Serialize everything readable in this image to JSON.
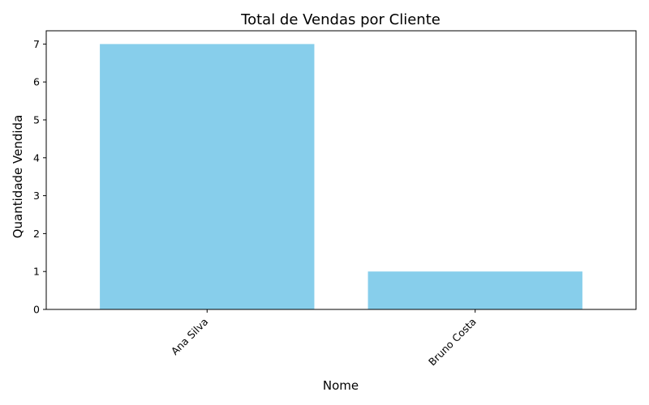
{
  "chart_data": {
    "type": "bar",
    "title": "Total de Vendas por Cliente",
    "xlabel": "Nome",
    "ylabel": "Quantidade Vendida",
    "categories": [
      "Ana Silva",
      "Bruno Costa"
    ],
    "values": [
      7,
      1
    ],
    "ylim": [
      0,
      7.35
    ],
    "yticks": [
      "0",
      "1",
      "2",
      "3",
      "4",
      "5",
      "6",
      "7"
    ],
    "bar_color": "#87CEEB",
    "grid": false,
    "legend": "none"
  }
}
